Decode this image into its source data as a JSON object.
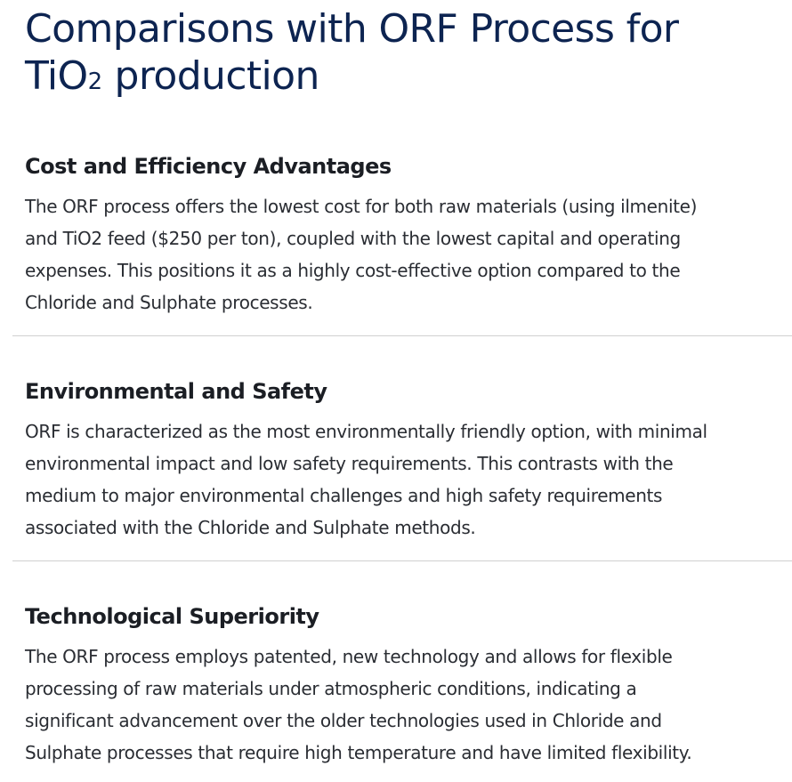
{
  "title": {
    "main": "Comparisons with ORF Process for",
    "line2_prefix": "TiO",
    "subscript": "2",
    "line2_suffix": " production"
  },
  "sections": [
    {
      "heading": "Cost and Efficiency Advantages",
      "lines": [
        "The ORF process offers the lowest cost for both raw materials (using ilmenite)",
        "and TiO2 feed ($250 per ton), coupled with the lowest capital and operating",
        "expenses. This positions it as a highly cost-effective option compared to the",
        "Chloride and Sulphate processes."
      ]
    },
    {
      "heading": "Environmental and Safety",
      "lines": [
        "ORF is characterized as the most environmentally friendly option, with minimal",
        "environmental impact and low safety requirements. This contrasts with the",
        "medium to major environmental challenges and high safety requirements",
        "associated with the Chloride and Sulphate methods."
      ]
    },
    {
      "heading": "Technological Superiority",
      "lines": [
        "The ORF process employs patented, new technology and allows for flexible",
        "processing of raw materials under atmospheric conditions, indicating a",
        "significant advancement over the older technologies used in Chloride and",
        "Sulphate processes that require high temperature and have limited flexibility."
      ]
    }
  ]
}
